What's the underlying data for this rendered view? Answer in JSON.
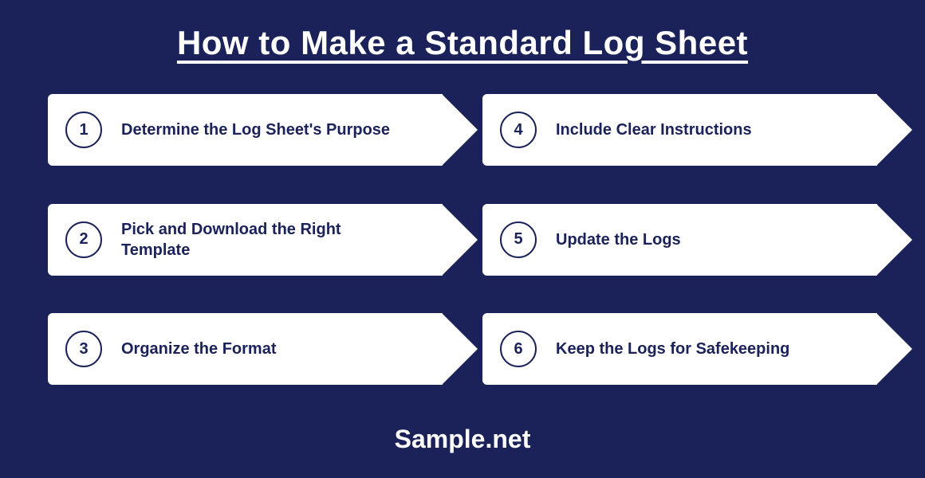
{
  "infographic": {
    "type": "infographic",
    "title": "How to Make a Standard Log Sheet",
    "footer": "Sample.net",
    "background_color": "#1a2259",
    "card_color": "#ffffff",
    "text_color": "#1a2259",
    "title_color": "#ffffff",
    "title_fontsize": 42,
    "step_fontsize": 20,
    "footer_fontsize": 32,
    "number_circle_border": "#1a2259",
    "layout": "2-column-3-row-arrows",
    "steps": [
      {
        "number": "1",
        "text": "Determine the Log Sheet's Purpose"
      },
      {
        "number": "2",
        "text": "Pick and Download the Right Template"
      },
      {
        "number": "3",
        "text": "Organize the Format"
      },
      {
        "number": "4",
        "text": "Include Clear Instructions"
      },
      {
        "number": "5",
        "text": "Update the Logs"
      },
      {
        "number": "6",
        "text": "Keep the Logs for Safekeeping"
      }
    ]
  }
}
